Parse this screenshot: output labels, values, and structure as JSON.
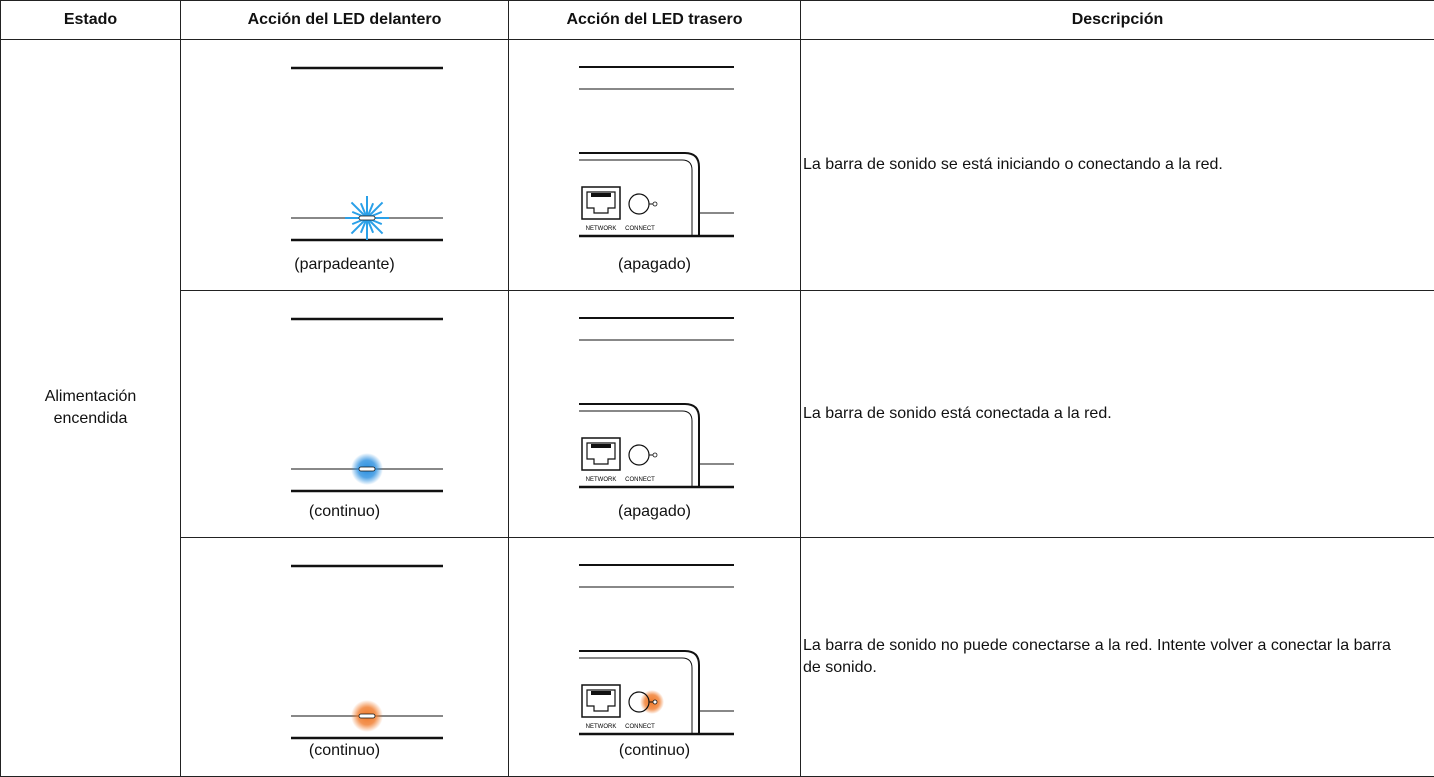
{
  "table": {
    "columns": [
      "Estado",
      "Acción del LED delantero",
      "Acción del LED trasero",
      "Descripción"
    ],
    "state": "Alimentación encendida",
    "panel_labels": [
      "NETWORK",
      "CONNECT"
    ],
    "rows": [
      {
        "front": "(parpadeante)",
        "rear": "(apagado)",
        "description": "La barra de sonido se está iniciando o conectando a la red."
      },
      {
        "front": "(continuo)",
        "rear": "(apagado)",
        "description": "La barra de sonido está conectada a la red."
      },
      {
        "front": "(continuo)",
        "rear": "(continuo)",
        "description": "La barra de sonido no puede conectarse a la red. Intente volver a conectar la barra de sonido."
      }
    ]
  }
}
